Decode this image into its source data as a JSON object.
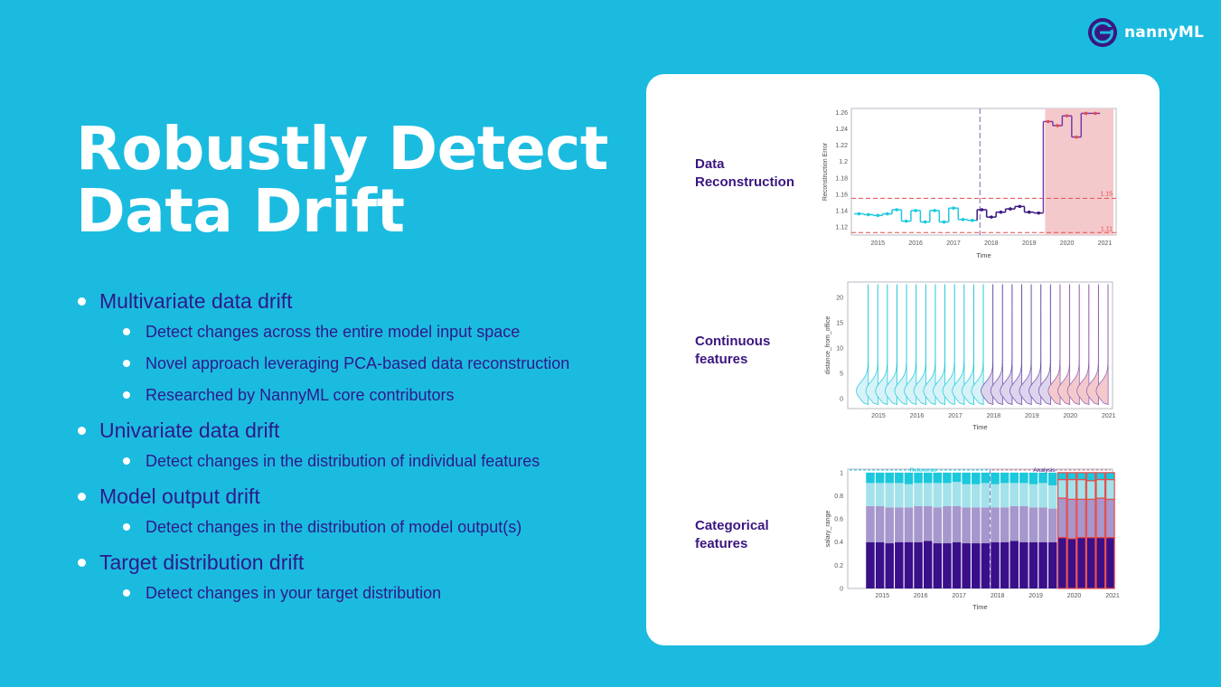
{
  "brand": {
    "name": "nannyML",
    "logo_icon": "nannyml-logo-icon"
  },
  "title": {
    "line1": "Robustly Detect",
    "line2": "Data Drift"
  },
  "bullets": [
    {
      "text": "Multivariate data drift",
      "sub": [
        "Detect changes across the entire model input space",
        "Novel approach leveraging PCA-based data reconstruction",
        "Researched by NannyML core contributors"
      ]
    },
    {
      "text": "Univariate data drift",
      "sub": [
        "Detect changes in the distribution of individual features"
      ]
    },
    {
      "text": "Model output drift",
      "sub": [
        "Detect changes in the distribution of model output(s)"
      ]
    },
    {
      "text": "Target distribution drift",
      "sub": [
        "Detect changes in your target distribution"
      ]
    }
  ],
  "panels": [
    {
      "label": "Data Reconstruction"
    },
    {
      "label": "Continuous features"
    },
    {
      "label": "Categorical features"
    }
  ],
  "colors": {
    "background": "#1bbbe0",
    "reference": "#1bc8dc",
    "analysis": "#3a1680",
    "alert": "#e74c4c",
    "alert_band": "#f4c9cc"
  },
  "chart_data": [
    {
      "type": "line",
      "title": "",
      "xlabel": "Time",
      "ylabel": "Reconstruction Error",
      "x_ticks": [
        "2015",
        "2016",
        "2017",
        "2018",
        "2019",
        "2020",
        "2021"
      ],
      "y_ticks": [
        "1.12",
        "1.14",
        "1.16",
        "1.18",
        "1.2",
        "1.22",
        "1.24",
        "1.26"
      ],
      "ylim": [
        1.11,
        1.265
      ],
      "xlim": [
        2014.3,
        2021.3
      ],
      "thresholds": {
        "upper": 1.155,
        "lower": 1.113,
        "upper_label": "1.15",
        "lower_label": "1.11"
      },
      "reference_end": 2017.7,
      "alert_start": 2019.42,
      "series": [
        {
          "part": "reference",
          "x": [
            2014.5,
            2014.75,
            2015.0,
            2015.25,
            2015.5,
            2015.75,
            2016.0,
            2016.25,
            2016.5,
            2016.75,
            2017.0,
            2017.25,
            2017.5
          ],
          "values": [
            1.136,
            1.135,
            1.134,
            1.136,
            1.141,
            1.127,
            1.14,
            1.126,
            1.14,
            1.126,
            1.143,
            1.129,
            1.128
          ]
        },
        {
          "part": "analysis",
          "x": [
            2017.75,
            2018.0,
            2018.25,
            2018.5,
            2018.75,
            2019.0,
            2019.25
          ],
          "values": [
            1.141,
            1.132,
            1.138,
            1.142,
            1.145,
            1.138,
            1.137
          ]
        },
        {
          "part": "alert",
          "x": [
            2019.5,
            2019.75,
            2020.0,
            2020.25,
            2020.5,
            2020.75
          ],
          "values": [
            1.249,
            1.244,
            1.256,
            1.23,
            1.259,
            1.259
          ]
        }
      ]
    },
    {
      "type": "area",
      "title": "",
      "xlabel": "Time",
      "ylabel": "distance_from_office",
      "x_ticks": [
        "2015",
        "2016",
        "2017",
        "2018",
        "2019",
        "2020",
        "2021"
      ],
      "y_ticks": [
        "0",
        "5",
        "10",
        "15",
        "20"
      ],
      "ylim": [
        -2,
        23
      ],
      "xlim": [
        2014.2,
        2021.1
      ],
      "distribution_x": [
        2014.5,
        2014.75,
        2015.0,
        2015.25,
        2015.5,
        2015.75,
        2016.0,
        2016.25,
        2016.5,
        2016.75,
        2017.0,
        2017.25,
        2017.5,
        2017.75,
        2018.0,
        2018.25,
        2018.5,
        2018.75,
        2019.0,
        2019.25,
        2019.5,
        2019.75,
        2020.0,
        2020.25,
        2020.5,
        2020.75
      ],
      "distribution_part": [
        "reference",
        "reference",
        "reference",
        "reference",
        "reference",
        "reference",
        "reference",
        "reference",
        "reference",
        "reference",
        "reference",
        "reference",
        "reference",
        "analysis",
        "analysis",
        "analysis",
        "analysis",
        "analysis",
        "analysis",
        "analysis",
        "alert",
        "alert",
        "alert",
        "alert",
        "alert",
        "alert"
      ]
    },
    {
      "type": "bar",
      "title": "",
      "xlabel": "Time",
      "ylabel": "salary_range",
      "x_ticks": [
        "2015",
        "2016",
        "2017",
        "2018",
        "2019",
        "2020",
        "2021"
      ],
      "y_ticks": [
        "0",
        "0.2",
        "0.4",
        "0.6",
        "0.8",
        "1"
      ],
      "ylim": [
        0,
        1.03
      ],
      "xlim": [
        2014.1,
        2021.0
      ],
      "annotations": [
        "Reference",
        "Analysis"
      ],
      "stack_colors": [
        "#3a0f8a",
        "#a697cc",
        "#a3e2ea",
        "#1bc8dc"
      ],
      "x": [
        2014.5,
        2014.75,
        2015.0,
        2015.25,
        2015.5,
        2015.75,
        2016.0,
        2016.25,
        2016.5,
        2016.75,
        2017.0,
        2017.25,
        2017.5,
        2017.75,
        2018.0,
        2018.25,
        2018.5,
        2018.75,
        2019.0,
        2019.25,
        2019.5,
        2019.75,
        2020.0,
        2020.25,
        2020.5,
        2020.75
      ],
      "part": [
        "reference",
        "reference",
        "reference",
        "reference",
        "reference",
        "reference",
        "reference",
        "reference",
        "reference",
        "reference",
        "reference",
        "reference",
        "reference",
        "analysis",
        "analysis",
        "analysis",
        "analysis",
        "analysis",
        "analysis",
        "analysis",
        "alert",
        "alert",
        "alert",
        "alert",
        "alert",
        "alert"
      ],
      "series": [
        {
          "values": [
            0.4,
            0.4,
            0.39,
            0.4,
            0.4,
            0.4,
            0.41,
            0.39,
            0.39,
            0.4,
            0.39,
            0.39,
            0.39,
            0.4,
            0.4,
            0.41,
            0.4,
            0.4,
            0.4,
            0.4,
            0.44,
            0.43,
            0.44,
            0.44,
            0.44,
            0.44
          ]
        },
        {
          "values": [
            0.31,
            0.31,
            0.31,
            0.3,
            0.3,
            0.31,
            0.3,
            0.31,
            0.32,
            0.31,
            0.31,
            0.31,
            0.31,
            0.3,
            0.3,
            0.3,
            0.31,
            0.3,
            0.3,
            0.29,
            0.34,
            0.34,
            0.33,
            0.33,
            0.34,
            0.33
          ]
        },
        {
          "values": [
            0.2,
            0.2,
            0.21,
            0.21,
            0.2,
            0.2,
            0.2,
            0.21,
            0.2,
            0.21,
            0.2,
            0.2,
            0.21,
            0.2,
            0.21,
            0.2,
            0.2,
            0.2,
            0.21,
            0.2,
            0.16,
            0.17,
            0.17,
            0.16,
            0.16,
            0.17
          ]
        },
        {
          "values": [
            0.09,
            0.09,
            0.09,
            0.09,
            0.1,
            0.09,
            0.09,
            0.09,
            0.09,
            0.08,
            0.1,
            0.1,
            0.09,
            0.1,
            0.09,
            0.09,
            0.09,
            0.1,
            0.09,
            0.11,
            0.06,
            0.06,
            0.06,
            0.07,
            0.06,
            0.06
          ]
        }
      ]
    }
  ]
}
